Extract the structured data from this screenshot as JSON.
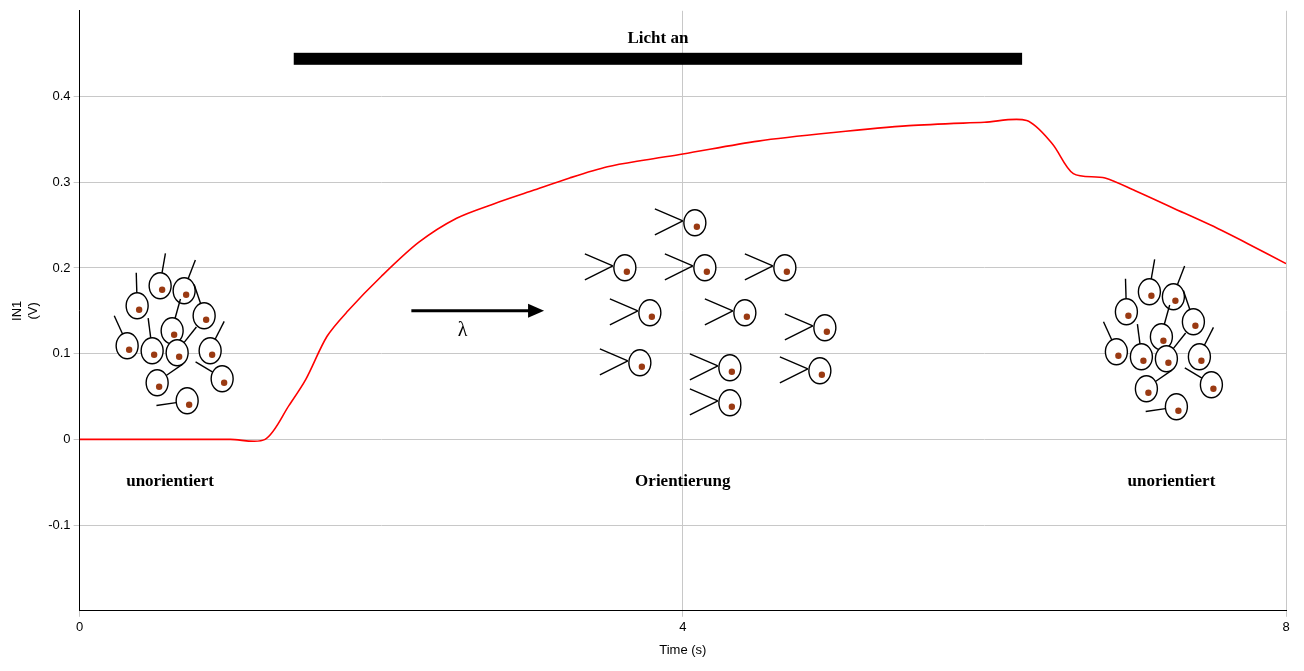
{
  "chart_data": {
    "type": "line",
    "x_label": "Time (s)",
    "y_label": [
      "IN1",
      "(V)"
    ],
    "x": [
      0,
      0.5,
      1.0,
      1.23,
      1.39,
      1.5,
      1.64,
      1.78,
      2.0,
      2.25,
      2.5,
      2.75,
      3.0,
      3.25,
      3.5,
      3.75,
      4.0,
      4.5,
      5.0,
      5.5,
      6.0,
      6.28,
      6.45,
      6.59,
      6.8,
      7.0,
      7.25,
      7.5,
      7.75,
      8.0
    ],
    "values": [
      0,
      0,
      0,
      0,
      0.04,
      0.07,
      0.12,
      0.15,
      0.19,
      0.23,
      0.258,
      0.275,
      0.29,
      0.305,
      0.318,
      0.326,
      0.333,
      0.348,
      0.358,
      0.366,
      0.37,
      0.372,
      0.345,
      0.31,
      0.305,
      0.29,
      0.27,
      0.25,
      0.228,
      0.205
    ],
    "color": "#ff0000",
    "xlim": [
      0,
      8
    ],
    "xticks": [
      0,
      4,
      8
    ],
    "ylim": [
      -0.2,
      0.5
    ],
    "yticks": [
      -0.1,
      0,
      0.1,
      0.2,
      0.3,
      0.4
    ],
    "grid": true,
    "annotations": {
      "light": {
        "label": "Licht an",
        "start": 1.42,
        "end": 6.25
      },
      "states": [
        "unorientiert",
        "Orientierung",
        "unorientiert"
      ],
      "arrow_label": "λ"
    }
  }
}
